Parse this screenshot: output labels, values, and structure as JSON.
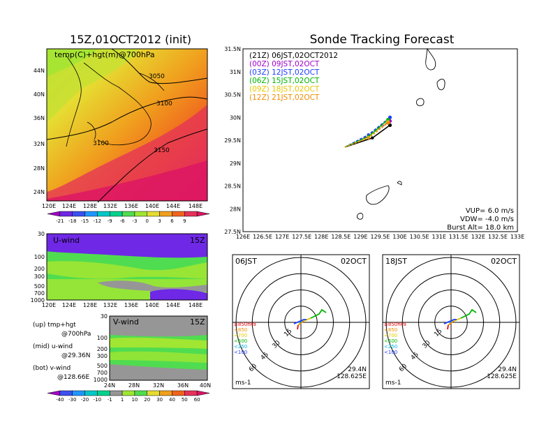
{
  "left_title": "15Z,01OCT2012 (init)",
  "right_title": "Sonde Tracking Forecast",
  "map_panel": {
    "label": "temp(C)+hgt(m)@700hPa",
    "lat_ticks": [
      "44N",
      "40N",
      "36N",
      "32N",
      "28N",
      "24N"
    ],
    "lon_ticks": [
      "120E",
      "124E",
      "128E",
      "132E",
      "136E",
      "140E",
      "144E",
      "148E"
    ],
    "contours": [
      "3050",
      "3100",
      "3100",
      "3150"
    ],
    "colorbar_ticks": [
      "-21",
      "-18",
      "-15",
      "-12",
      "-9",
      "-6",
      "-3",
      "0",
      "3",
      "6",
      "9"
    ],
    "colorbar_colors": [
      "#a000c8",
      "#6e28e6",
      "#3c50f0",
      "#1e96ff",
      "#00c8c8",
      "#00d28c",
      "#50dc50",
      "#a0e632",
      "#e6dc32",
      "#f0a01e",
      "#f0641e",
      "#e6325a",
      "#dc1464"
    ]
  },
  "u_panel": {
    "label": "U-wind",
    "time": "15Z",
    "p_ticks": [
      "30",
      "100",
      "200",
      "300",
      "500",
      "700",
      "1000"
    ],
    "lon_ticks": [
      "120E",
      "124E",
      "128E",
      "132E",
      "136E",
      "140E",
      "144E",
      "148E"
    ]
  },
  "v_panel": {
    "label": "V-wind",
    "time": "15Z",
    "p_ticks": [
      "30",
      "100",
      "200",
      "300",
      "500",
      "700",
      "1000"
    ],
    "lat_ticks": [
      "24N",
      "28N",
      "32N",
      "36N",
      "40N"
    ]
  },
  "side_notes": [
    {
      "head": "(up) tmp+hgt",
      "sub": "@700hPa"
    },
    {
      "head": "(mid) u-wind",
      "sub": "@29.36N"
    },
    {
      "head": "(bot) v-wind",
      "sub": "@128.66E"
    }
  ],
  "wind_colorbar": {
    "ticks": [
      "-40",
      "-30",
      "-20",
      "-10",
      "-1",
      "1",
      "10",
      "20",
      "30",
      "40",
      "50",
      "60"
    ],
    "colors": [
      "#a000c8",
      "#3c50f0",
      "#1e96ff",
      "#00c8c8",
      "#00d28c",
      "#969696",
      "#a0e632",
      "#50dc50",
      "#e6dc32",
      "#f0a01e",
      "#f0641e",
      "#e6325a",
      "#dc1464"
    ]
  },
  "track_panel": {
    "lat_ticks": [
      "31.5N",
      "31N",
      "30.5N",
      "30N",
      "29.5N",
      "29N",
      "28.5N",
      "28N",
      "27.5N"
    ],
    "lon_ticks": [
      "126E",
      "126.5E",
      "127E",
      "127.5E",
      "128E",
      "128.5E",
      "129E",
      "129.5E",
      "130E",
      "130.5E",
      "131E",
      "131.5E",
      "132E",
      "132.5E",
      "133E"
    ],
    "legend": [
      {
        "label": "(21Z) 06JST,02OCT2012",
        "color": "#000000"
      },
      {
        "label": "(00Z) 09JST,02OCT",
        "color": "#a000c8"
      },
      {
        "label": "(03Z) 12JST,02OCT",
        "color": "#1e3cff"
      },
      {
        "label": "(06Z) 15JST,02OCT",
        "color": "#00b400"
      },
      {
        "label": "(09Z) 18JST,02OCT",
        "color": "#e6c800"
      },
      {
        "label": "(12Z) 21JST,02OCT",
        "color": "#f08c00"
      }
    ],
    "params": {
      "vup": "VUP= 6.0 m/s",
      "vdw": "VDW= -4.0 m/s",
      "burst": "Burst Alt= 18.0 km"
    }
  },
  "hodo_left": {
    "time": "06JST",
    "date": "02OCT",
    "lat": "29.4N",
    "lon": "128.625E",
    "unit": "ms-1"
  },
  "hodo_right": {
    "time": "18JST",
    "date": "02OCT",
    "lat": "29.4N",
    "lon": "128.625E",
    "unit": "ms-1"
  },
  "hodo_rings": [
    "15",
    "30",
    "45",
    "60"
  ],
  "hodo_levels": [
    {
      "label": "≥850hPa",
      "color": "#e60000"
    },
    {
      "label": "<850",
      "color": "#f08c00"
    },
    {
      "label": "<700",
      "color": "#e6c800"
    },
    {
      "label": "<500",
      "color": "#00b400"
    },
    {
      "label": "<250",
      "color": "#00b4dc"
    },
    {
      "label": "<100",
      "color": "#1e3cff"
    }
  ],
  "chart_data": {
    "type": "line",
    "title": "Sonde Tracking Forecast",
    "xlim": [
      126,
      133
    ],
    "ylim": [
      27.5,
      31.5
    ],
    "series": [
      {
        "name": "(21Z) 06JST,02OCT2012",
        "x": [
          128.6,
          129.3,
          129.75
        ],
        "y": [
          29.35,
          29.55,
          29.83
        ]
      },
      {
        "name": "(00Z) 09JST,02OCT",
        "x": [
          128.6,
          129.2,
          129.75
        ],
        "y": [
          29.35,
          29.6,
          29.92
        ]
      },
      {
        "name": "(03Z) 12JST,02OCT",
        "x": [
          128.6,
          129.2,
          129.75
        ],
        "y": [
          29.35,
          29.62,
          30.0
        ]
      },
      {
        "name": "(06Z) 15JST,02OCT",
        "x": [
          128.6,
          129.2,
          129.7
        ],
        "y": [
          29.35,
          29.58,
          29.95
        ]
      },
      {
        "name": "(09Z) 18JST,02OCT",
        "x": [
          128.6,
          129.2,
          129.7
        ],
        "y": [
          29.35,
          29.56,
          29.9
        ]
      },
      {
        "name": "(12Z) 21JST,02OCT",
        "x": [
          128.6,
          129.2,
          129.7
        ],
        "y": [
          29.35,
          29.55,
          29.88
        ]
      }
    ]
  }
}
